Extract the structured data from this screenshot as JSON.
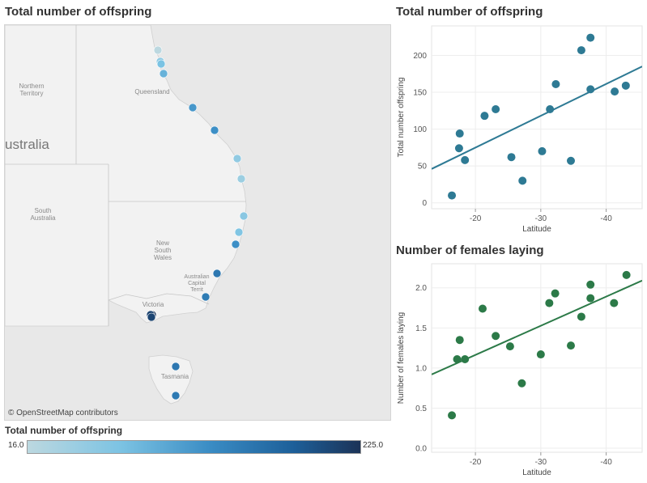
{
  "map": {
    "title": "Total number of offspring",
    "attribution": "© OpenStreetMap contributors",
    "labels": [
      {
        "id": "northern-territory",
        "lines": [
          "Northern",
          "Territory"
        ]
      },
      {
        "id": "queensland",
        "lines": [
          "Queensland"
        ]
      },
      {
        "id": "australia",
        "lines": [
          "ustralia"
        ]
      },
      {
        "id": "south-australia",
        "lines": [
          "South",
          "Australia"
        ]
      },
      {
        "id": "new-south-wales",
        "lines": [
          "New",
          "South",
          "Wales"
        ]
      },
      {
        "id": "act",
        "lines": [
          "Australian",
          "Capital",
          "Territ"
        ]
      },
      {
        "id": "victoria",
        "lines": [
          "Victoria"
        ]
      },
      {
        "id": "tasmania",
        "lines": [
          "Tasmania"
        ]
      }
    ],
    "points": [
      {
        "latitude": -15.5,
        "offspring": 16
      },
      {
        "latitude": -16.6,
        "offspring": 58
      },
      {
        "latitude": -16.8,
        "offspring": 75
      },
      {
        "latitude": -17.5,
        "offspring": 92
      },
      {
        "latitude": -20.3,
        "offspring": 120
      },
      {
        "latitude": -21.5,
        "offspring": 128
      },
      {
        "latitude": -24.2,
        "offspring": 55
      },
      {
        "latitude": -25.5,
        "offspring": 45
      },
      {
        "latitude": -28.5,
        "offspring": 62
      },
      {
        "latitude": -30.0,
        "offspring": 70
      },
      {
        "latitude": -31.5,
        "offspring": 128
      },
      {
        "latitude": -32.8,
        "offspring": 155
      },
      {
        "latitude": -34.4,
        "offspring": 150
      },
      {
        "latitude": -35.8,
        "offspring": 225
      },
      {
        "latitude": -37.8,
        "offspring": 210
      },
      {
        "latitude": -38.0,
        "offspring": 208
      },
      {
        "latitude": -41.1,
        "offspring": 155
      },
      {
        "latitude": -43.0,
        "offspring": 152
      }
    ]
  },
  "legend": {
    "title": "Total number of offspring",
    "min_label": "16.0",
    "max_label": "225.0",
    "min": 16,
    "max": 225
  },
  "chart_data": [
    {
      "type": "scatter",
      "title": "Total number of offspring",
      "xlabel": "Latitude",
      "ylabel": "Total number offspring",
      "x_ticks": [
        -20,
        -30,
        -40
      ],
      "x_tick_labels": [
        "-20",
        "-30",
        "-40"
      ],
      "y_ticks": [
        0,
        50,
        100,
        150,
        200
      ],
      "y_tick_labels": [
        "0",
        "50",
        "100",
        "150",
        "200"
      ],
      "xlim": [
        -13.3,
        -45.5
      ],
      "ylim": [
        -8,
        240
      ],
      "color": "#2e7a94",
      "x": [
        -16.4,
        -17.5,
        -17.6,
        -18.4,
        -21.4,
        -23.1,
        -25.5,
        -27.2,
        -30.2,
        -31.4,
        -32.3,
        -34.6,
        -36.2,
        -37.6,
        -37.6,
        -41.3,
        -43.0
      ],
      "y": [
        10,
        74,
        94,
        58,
        118,
        127,
        62,
        30,
        70,
        127,
        161,
        57,
        207,
        224,
        154,
        151,
        159
      ],
      "trendline": {
        "x": [
          -13.3,
          -45.5
        ],
        "y": [
          46,
          185
        ]
      }
    },
    {
      "type": "scatter",
      "title": "Number of females laying",
      "xlabel": "Latitude",
      "ylabel": "Number of females laying",
      "x_ticks": [
        -20,
        -30,
        -40
      ],
      "x_tick_labels": [
        "-20",
        "-30",
        "-40"
      ],
      "y_ticks": [
        0.0,
        0.5,
        1.0,
        1.5,
        2.0
      ],
      "y_tick_labels": [
        "0.0",
        "0.5",
        "1.0",
        "1.5",
        "2.0"
      ],
      "xlim": [
        -13.3,
        -45.5
      ],
      "ylim": [
        -0.05,
        2.3
      ],
      "color": "#2c7a48",
      "x": [
        -16.4,
        -17.2,
        -17.6,
        -18.4,
        -21.1,
        -23.1,
        -25.3,
        -27.1,
        -30.0,
        -31.3,
        -32.2,
        -34.6,
        -36.2,
        -37.6,
        -37.6,
        -41.2,
        -43.1
      ],
      "y": [
        0.41,
        1.11,
        1.35,
        1.11,
        1.74,
        1.4,
        1.27,
        0.81,
        1.17,
        1.81,
        1.93,
        1.28,
        1.64,
        2.04,
        1.87,
        1.81,
        2.16
      ],
      "trendline": {
        "x": [
          -13.3,
          -45.5
        ],
        "y": [
          0.92,
          2.09
        ]
      }
    }
  ]
}
